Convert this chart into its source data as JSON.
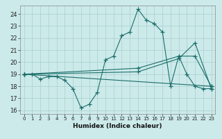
{
  "xlabel": "Humidex (Indice chaleur)",
  "xlim": [
    -0.5,
    23.5
  ],
  "ylim": [
    15.7,
    24.7
  ],
  "yticks": [
    16,
    17,
    18,
    19,
    20,
    21,
    22,
    23,
    24
  ],
  "xticks": [
    0,
    1,
    2,
    3,
    4,
    5,
    6,
    7,
    8,
    9,
    10,
    11,
    12,
    13,
    14,
    15,
    16,
    17,
    18,
    19,
    20,
    21,
    22,
    23
  ],
  "background_color": "#cceaea",
  "grid_color": "#aacece",
  "line_color": "#1a6e6a",
  "lines": [
    {
      "x": [
        0,
        1,
        2,
        3,
        4,
        5,
        6,
        7,
        8,
        9,
        10,
        11,
        12,
        13,
        14,
        15,
        16,
        17,
        18,
        19,
        20,
        21,
        22,
        23
      ],
      "y": [
        19.0,
        19.0,
        18.6,
        18.8,
        18.8,
        18.5,
        17.8,
        16.2,
        16.5,
        17.5,
        20.2,
        20.5,
        22.2,
        22.5,
        24.4,
        23.5,
        23.2,
        22.5,
        18.0,
        20.5,
        19.0,
        18.0,
        17.8,
        17.8
      ]
    },
    {
      "x": [
        0,
        14,
        19,
        21,
        23
      ],
      "y": [
        19.0,
        19.2,
        20.3,
        21.6,
        17.8
      ]
    },
    {
      "x": [
        0,
        14,
        19,
        21,
        23
      ],
      "y": [
        19.0,
        19.5,
        20.5,
        20.5,
        18.0
      ]
    },
    {
      "x": [
        0,
        23
      ],
      "y": [
        19.0,
        18.0
      ]
    }
  ]
}
